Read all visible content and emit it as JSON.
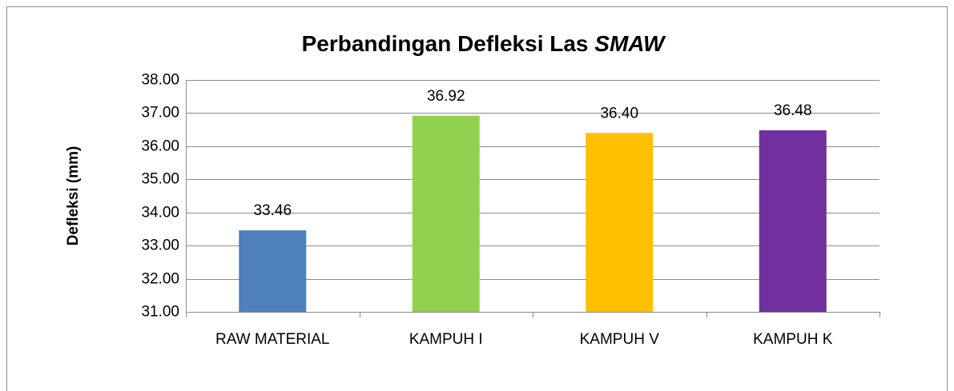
{
  "chart_data": {
    "type": "bar",
    "title": "Perbandingan Defleksi Las",
    "title_italic": "SMAW",
    "y_label": "Defleksi (mm)",
    "categories": [
      "RAW MATERIAL",
      "KAMPUH I",
      "KAMPUH V",
      "KAMPUH K"
    ],
    "values": [
      33.46,
      36.92,
      36.4,
      36.48
    ],
    "value_labels": [
      "33.46",
      "36.92",
      "36.40",
      "36.48"
    ],
    "colors": [
      "#4f81bd",
      "#92d050",
      "#ffc000",
      "#7030a0"
    ],
    "ylim": [
      31,
      38
    ],
    "yticks": [
      {
        "value": 31,
        "label": "31.00"
      },
      {
        "value": 32,
        "label": "32.00"
      },
      {
        "value": 33,
        "label": "33.00"
      },
      {
        "value": 34,
        "label": "34.00"
      },
      {
        "value": 35,
        "label": "35.00"
      },
      {
        "value": 36,
        "label": "36.00"
      },
      {
        "value": 37,
        "label": "37.00"
      },
      {
        "value": 38,
        "label": "38.00"
      }
    ],
    "grid": true
  }
}
